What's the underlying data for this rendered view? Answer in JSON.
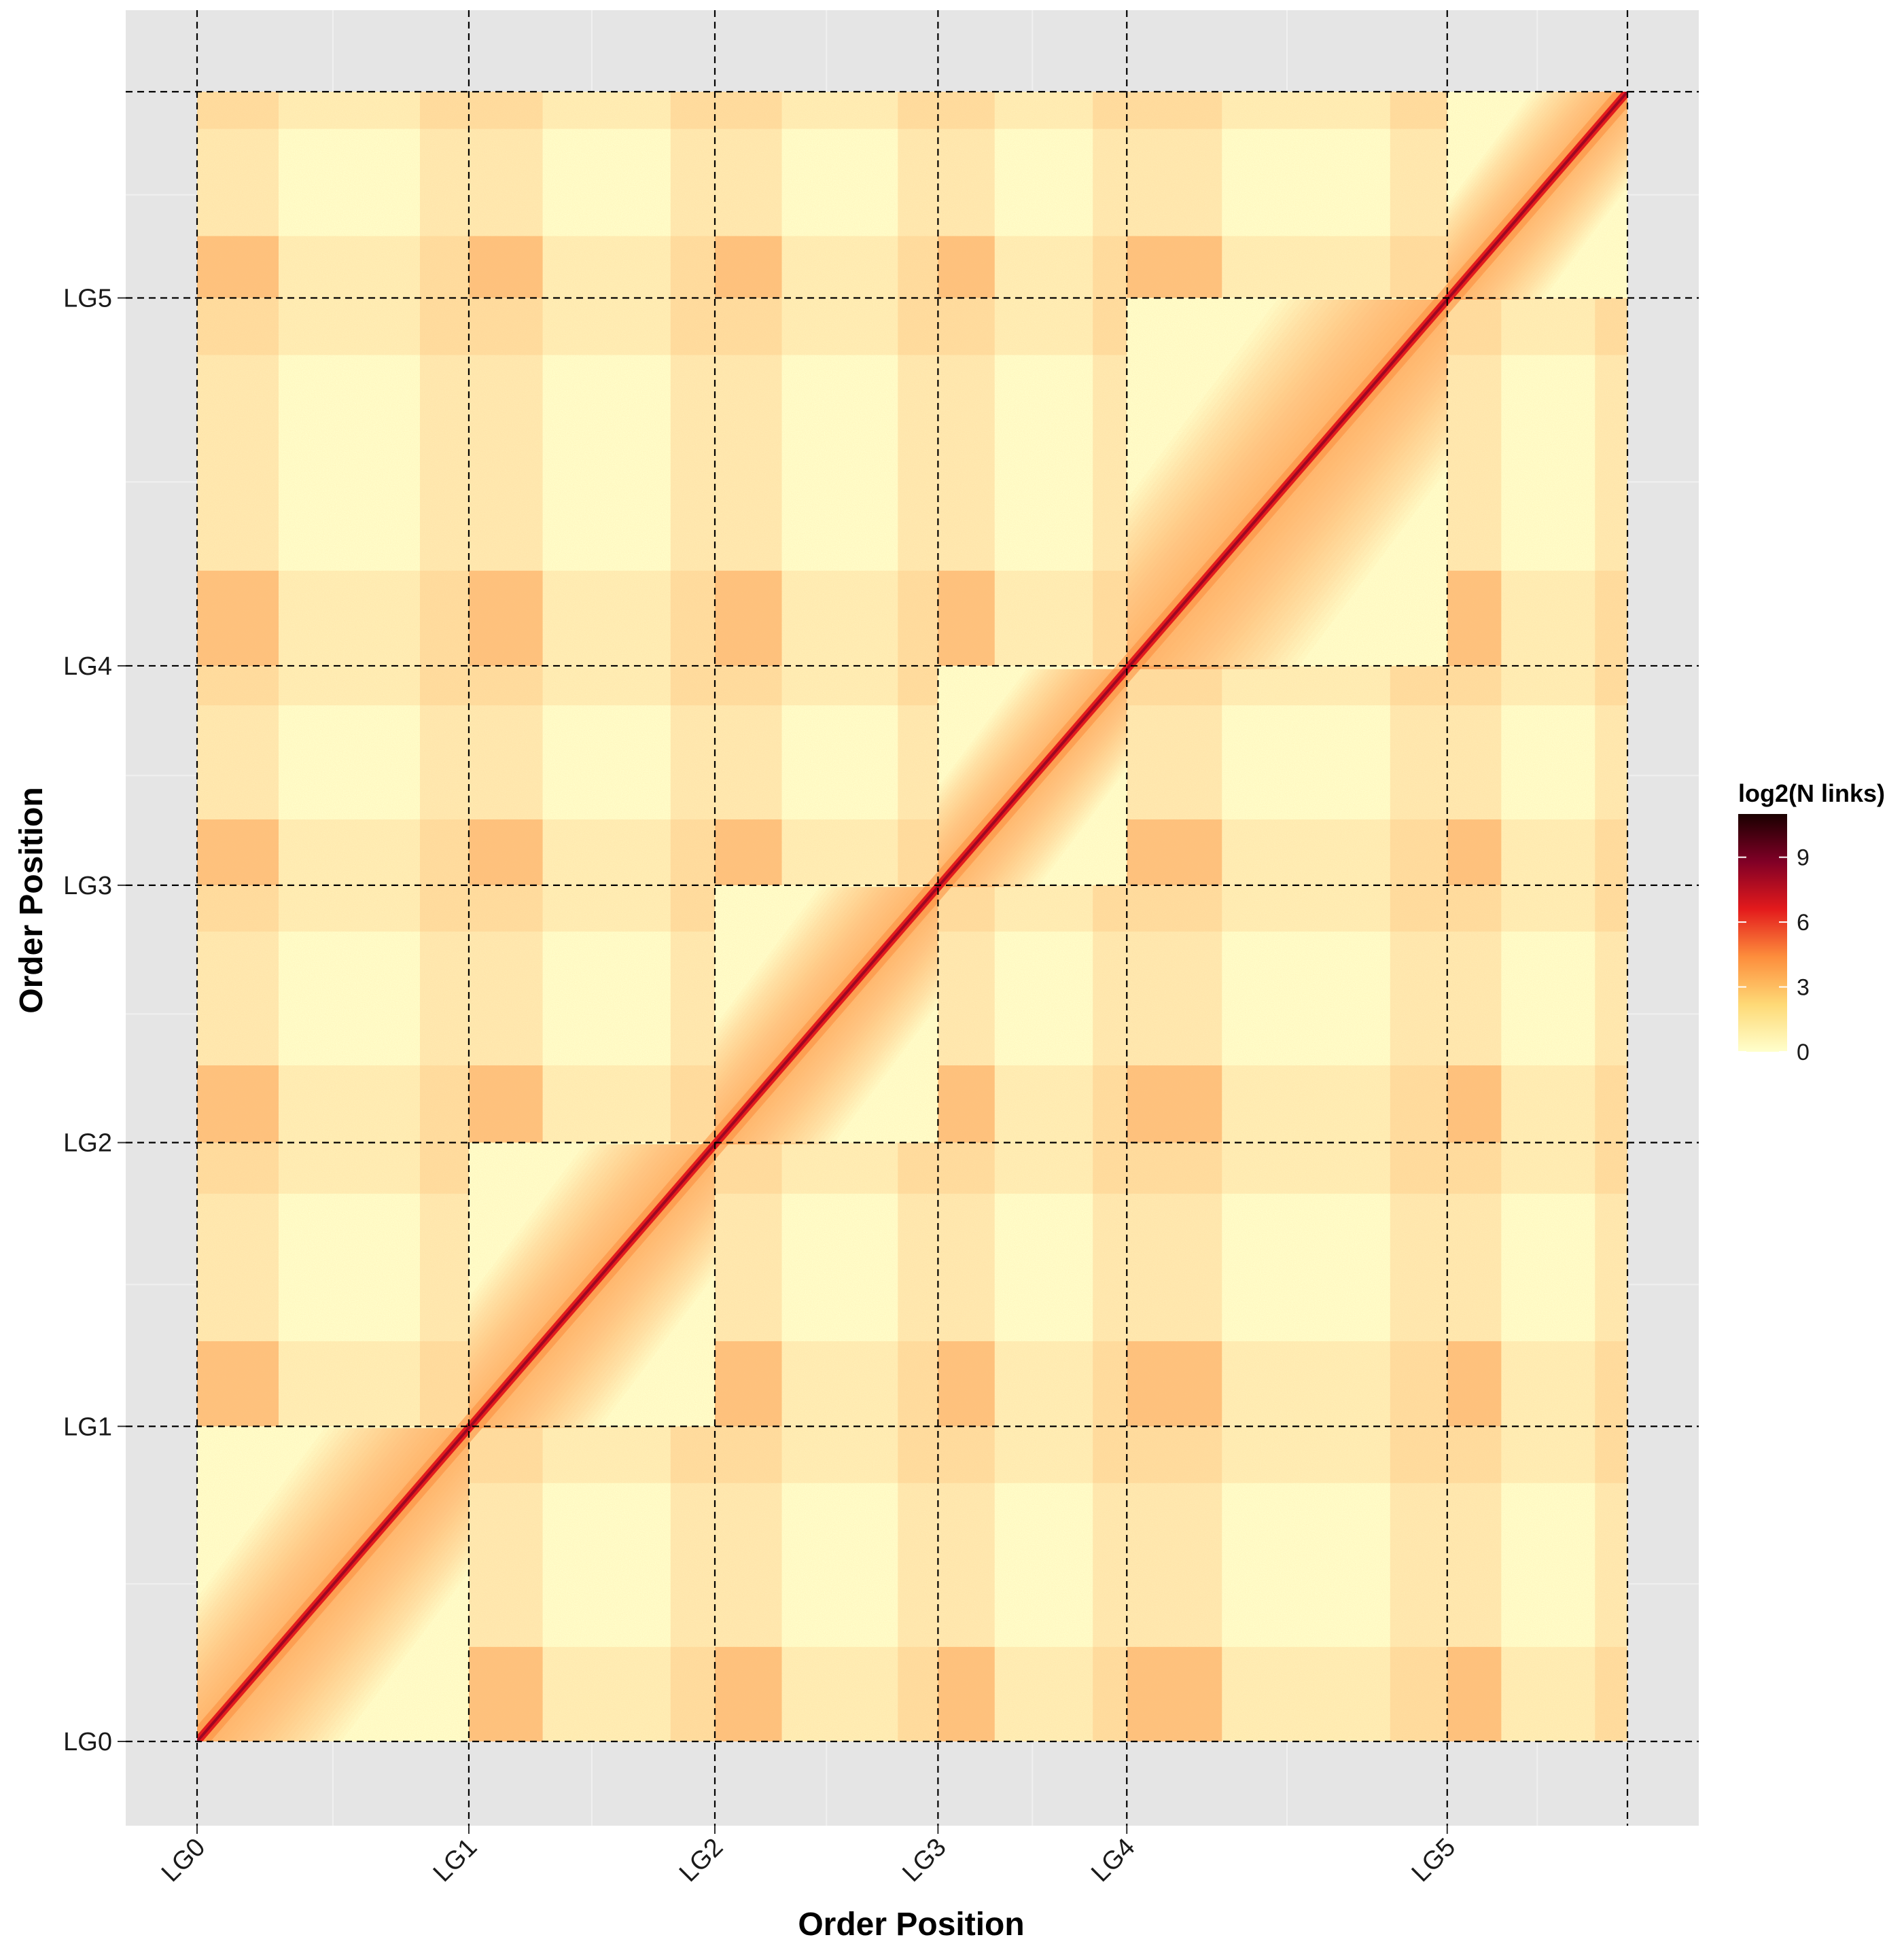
{
  "chart_data": {
    "type": "heatmap",
    "title": "",
    "xlabel": "Order Position",
    "ylabel": "Order Position",
    "grid": true,
    "x_ticks": [
      {
        "label": "LG0",
        "position": 0
      },
      {
        "label": "LG1",
        "position": 0.19
      },
      {
        "label": "LG2",
        "position": 0.362
      },
      {
        "label": "LG3",
        "position": 0.518
      },
      {
        "label": "LG4",
        "position": 0.65
      },
      {
        "label": "LG5",
        "position": 0.874
      }
    ],
    "y_ticks": [
      {
        "label": "LG0",
        "position": 0
      },
      {
        "label": "LG1",
        "position": 0.191
      },
      {
        "label": "LG2",
        "position": 0.363
      },
      {
        "label": "LG3",
        "position": 0.519
      },
      {
        "label": "LG4",
        "position": 0.652
      },
      {
        "label": "LG5",
        "position": 0.875
      }
    ],
    "x_max": 1.0,
    "y_max": 1.0,
    "linkage_groups": [
      "LG0",
      "LG1",
      "LG2",
      "LG3",
      "LG4",
      "LG5"
    ],
    "legend": {
      "title": "log2(N links)",
      "placement": "right",
      "ticks": [
        0,
        3,
        6,
        9
      ],
      "range": [
        0,
        11
      ],
      "colors": [
        "#FFFFCC",
        "#FED976",
        "#FD8D3C",
        "#E31A1C",
        "#800026",
        "#1A0000"
      ]
    },
    "colors": {
      "panel_background": "#E5E5E5",
      "grid_minor": "#F0F0F0",
      "boundary_line": "#000000"
    }
  }
}
